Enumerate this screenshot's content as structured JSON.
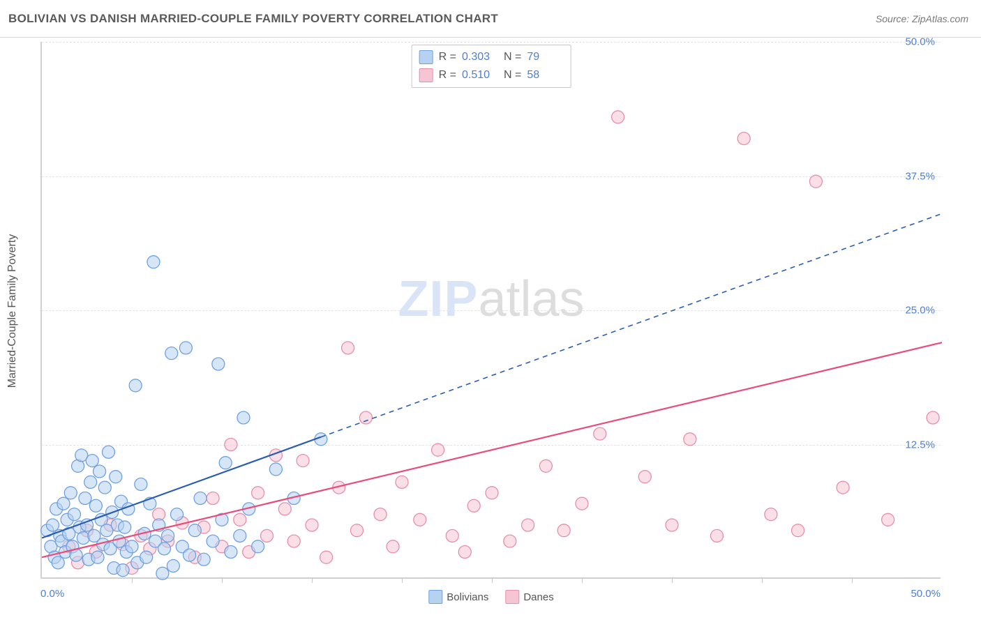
{
  "title": "BOLIVIAN VS DANISH MARRIED-COUPLE FAMILY POVERTY CORRELATION CHART",
  "source_label": "Source: ZipAtlas.com",
  "y_axis_title": "Married-Couple Family Poverty",
  "watermark": {
    "zip": "ZIP",
    "atlas": "atlas"
  },
  "colors": {
    "series_a_fill": "#b7d2f1",
    "series_a_stroke": "#6fa1e0",
    "series_a_line": "#2a5db0",
    "series_b_fill": "#f6c5d4",
    "series_b_stroke": "#e58fad",
    "series_b_line": "#e94b7a",
    "grid": "#e4e4e4",
    "axis": "#d0d0d0",
    "tick_label": "#4a7fd6",
    "text": "#5a5a5a",
    "background": "#ffffff"
  },
  "chart": {
    "type": "scatter",
    "xlim": [
      0,
      50
    ],
    "ylim": [
      0,
      50
    ],
    "y_ticks": [
      12.5,
      25.0,
      37.5,
      50.0
    ],
    "y_tick_labels": [
      "12.5%",
      "25.0%",
      "37.5%",
      "50.0%"
    ],
    "x_label_min": "0.0%",
    "x_label_max": "50.0%",
    "x_tick_step": 5,
    "marker_radius": 9,
    "marker_fill_opacity": 0.55,
    "line_width_solid": 2.2,
    "line_width_dash": 1.6,
    "dash_pattern": "7 6"
  },
  "stats": {
    "series_a": {
      "R_label": "R =",
      "R": "0.303",
      "N_label": "N =",
      "N": "79"
    },
    "series_b": {
      "R_label": "R =",
      "R": "0.510",
      "N_label": "N =",
      "N": "58"
    }
  },
  "legend_bottom": {
    "series_a": "Bolivians",
    "series_b": "Danes"
  },
  "trend": {
    "series_a": {
      "x1": 0,
      "y1": 3.8,
      "solid_x2": 15.5,
      "solid_y2": 13.2,
      "dash_x2": 50,
      "dash_y2": 34.0
    },
    "series_b": {
      "x1": 0,
      "y1": 2.0,
      "x2": 50,
      "y2": 22.0
    }
  },
  "series_a_points": [
    [
      0.3,
      4.5
    ],
    [
      0.5,
      3.0
    ],
    [
      0.6,
      5.0
    ],
    [
      0.7,
      2.0
    ],
    [
      0.8,
      6.5
    ],
    [
      0.9,
      1.5
    ],
    [
      1.0,
      4.0
    ],
    [
      1.1,
      3.5
    ],
    [
      1.2,
      7.0
    ],
    [
      1.3,
      2.5
    ],
    [
      1.4,
      5.5
    ],
    [
      1.5,
      4.2
    ],
    [
      1.6,
      8.0
    ],
    [
      1.7,
      3.0
    ],
    [
      1.8,
      6.0
    ],
    [
      1.9,
      2.2
    ],
    [
      2.0,
      10.5
    ],
    [
      2.1,
      4.8
    ],
    [
      2.2,
      11.5
    ],
    [
      2.3,
      3.8
    ],
    [
      2.4,
      7.5
    ],
    [
      2.5,
      5.0
    ],
    [
      2.6,
      1.8
    ],
    [
      2.7,
      9.0
    ],
    [
      2.8,
      11.0
    ],
    [
      2.9,
      4.0
    ],
    [
      3.0,
      6.8
    ],
    [
      3.1,
      2.0
    ],
    [
      3.2,
      10.0
    ],
    [
      3.3,
      5.5
    ],
    [
      3.4,
      3.2
    ],
    [
      3.5,
      8.5
    ],
    [
      3.6,
      4.5
    ],
    [
      3.7,
      11.8
    ],
    [
      3.8,
      2.8
    ],
    [
      3.9,
      6.2
    ],
    [
      4.0,
      1.0
    ],
    [
      4.1,
      9.5
    ],
    [
      4.2,
      5.0
    ],
    [
      4.3,
      3.5
    ],
    [
      4.4,
      7.2
    ],
    [
      4.5,
      0.8
    ],
    [
      4.6,
      4.8
    ],
    [
      4.7,
      2.5
    ],
    [
      4.8,
      6.5
    ],
    [
      5.0,
      3.0
    ],
    [
      5.2,
      18.0
    ],
    [
      5.3,
      1.5
    ],
    [
      5.5,
      8.8
    ],
    [
      5.7,
      4.2
    ],
    [
      5.8,
      2.0
    ],
    [
      6.0,
      7.0
    ],
    [
      6.2,
      29.5
    ],
    [
      6.3,
      3.5
    ],
    [
      6.5,
      5.0
    ],
    [
      6.7,
      0.5
    ],
    [
      6.8,
      2.8
    ],
    [
      7.0,
      4.0
    ],
    [
      7.2,
      21.0
    ],
    [
      7.3,
      1.2
    ],
    [
      7.5,
      6.0
    ],
    [
      7.8,
      3.0
    ],
    [
      8.0,
      21.5
    ],
    [
      8.2,
      2.2
    ],
    [
      8.5,
      4.5
    ],
    [
      8.8,
      7.5
    ],
    [
      9.0,
      1.8
    ],
    [
      9.5,
      3.5
    ],
    [
      9.8,
      20.0
    ],
    [
      10.0,
      5.5
    ],
    [
      10.2,
      10.8
    ],
    [
      10.5,
      2.5
    ],
    [
      11.0,
      4.0
    ],
    [
      11.2,
      15.0
    ],
    [
      11.5,
      6.5
    ],
    [
      12.0,
      3.0
    ],
    [
      13.0,
      10.2
    ],
    [
      14.0,
      7.5
    ],
    [
      15.5,
      13.0
    ]
  ],
  "series_b_points": [
    [
      1.5,
      3.0
    ],
    [
      2.0,
      1.5
    ],
    [
      2.5,
      4.5
    ],
    [
      3.0,
      2.5
    ],
    [
      3.8,
      5.0
    ],
    [
      4.5,
      3.2
    ],
    [
      5.0,
      1.0
    ],
    [
      5.5,
      4.0
    ],
    [
      6.0,
      2.8
    ],
    [
      6.5,
      6.0
    ],
    [
      7.0,
      3.5
    ],
    [
      7.8,
      5.2
    ],
    [
      8.5,
      2.0
    ],
    [
      9.0,
      4.8
    ],
    [
      9.5,
      7.5
    ],
    [
      10.0,
      3.0
    ],
    [
      10.5,
      12.5
    ],
    [
      11.0,
      5.5
    ],
    [
      11.5,
      2.5
    ],
    [
      12.0,
      8.0
    ],
    [
      12.5,
      4.0
    ],
    [
      13.0,
      11.5
    ],
    [
      13.5,
      6.5
    ],
    [
      14.0,
      3.5
    ],
    [
      14.5,
      11.0
    ],
    [
      15.0,
      5.0
    ],
    [
      15.8,
      2.0
    ],
    [
      16.5,
      8.5
    ],
    [
      17.0,
      21.5
    ],
    [
      17.5,
      4.5
    ],
    [
      18.0,
      15.0
    ],
    [
      18.8,
      6.0
    ],
    [
      19.5,
      3.0
    ],
    [
      20.0,
      9.0
    ],
    [
      21.0,
      5.5
    ],
    [
      22.0,
      12.0
    ],
    [
      22.8,
      4.0
    ],
    [
      23.5,
      2.5
    ],
    [
      24.0,
      6.8
    ],
    [
      25.0,
      8.0
    ],
    [
      26.0,
      3.5
    ],
    [
      27.0,
      5.0
    ],
    [
      28.0,
      10.5
    ],
    [
      29.0,
      4.5
    ],
    [
      30.0,
      7.0
    ],
    [
      31.0,
      13.5
    ],
    [
      32.0,
      43.0
    ],
    [
      33.5,
      9.5
    ],
    [
      35.0,
      5.0
    ],
    [
      36.0,
      13.0
    ],
    [
      37.5,
      4.0
    ],
    [
      39.0,
      41.0
    ],
    [
      40.5,
      6.0
    ],
    [
      42.0,
      4.5
    ],
    [
      43.0,
      37.0
    ],
    [
      44.5,
      8.5
    ],
    [
      47.0,
      5.5
    ],
    [
      49.5,
      15.0
    ]
  ]
}
